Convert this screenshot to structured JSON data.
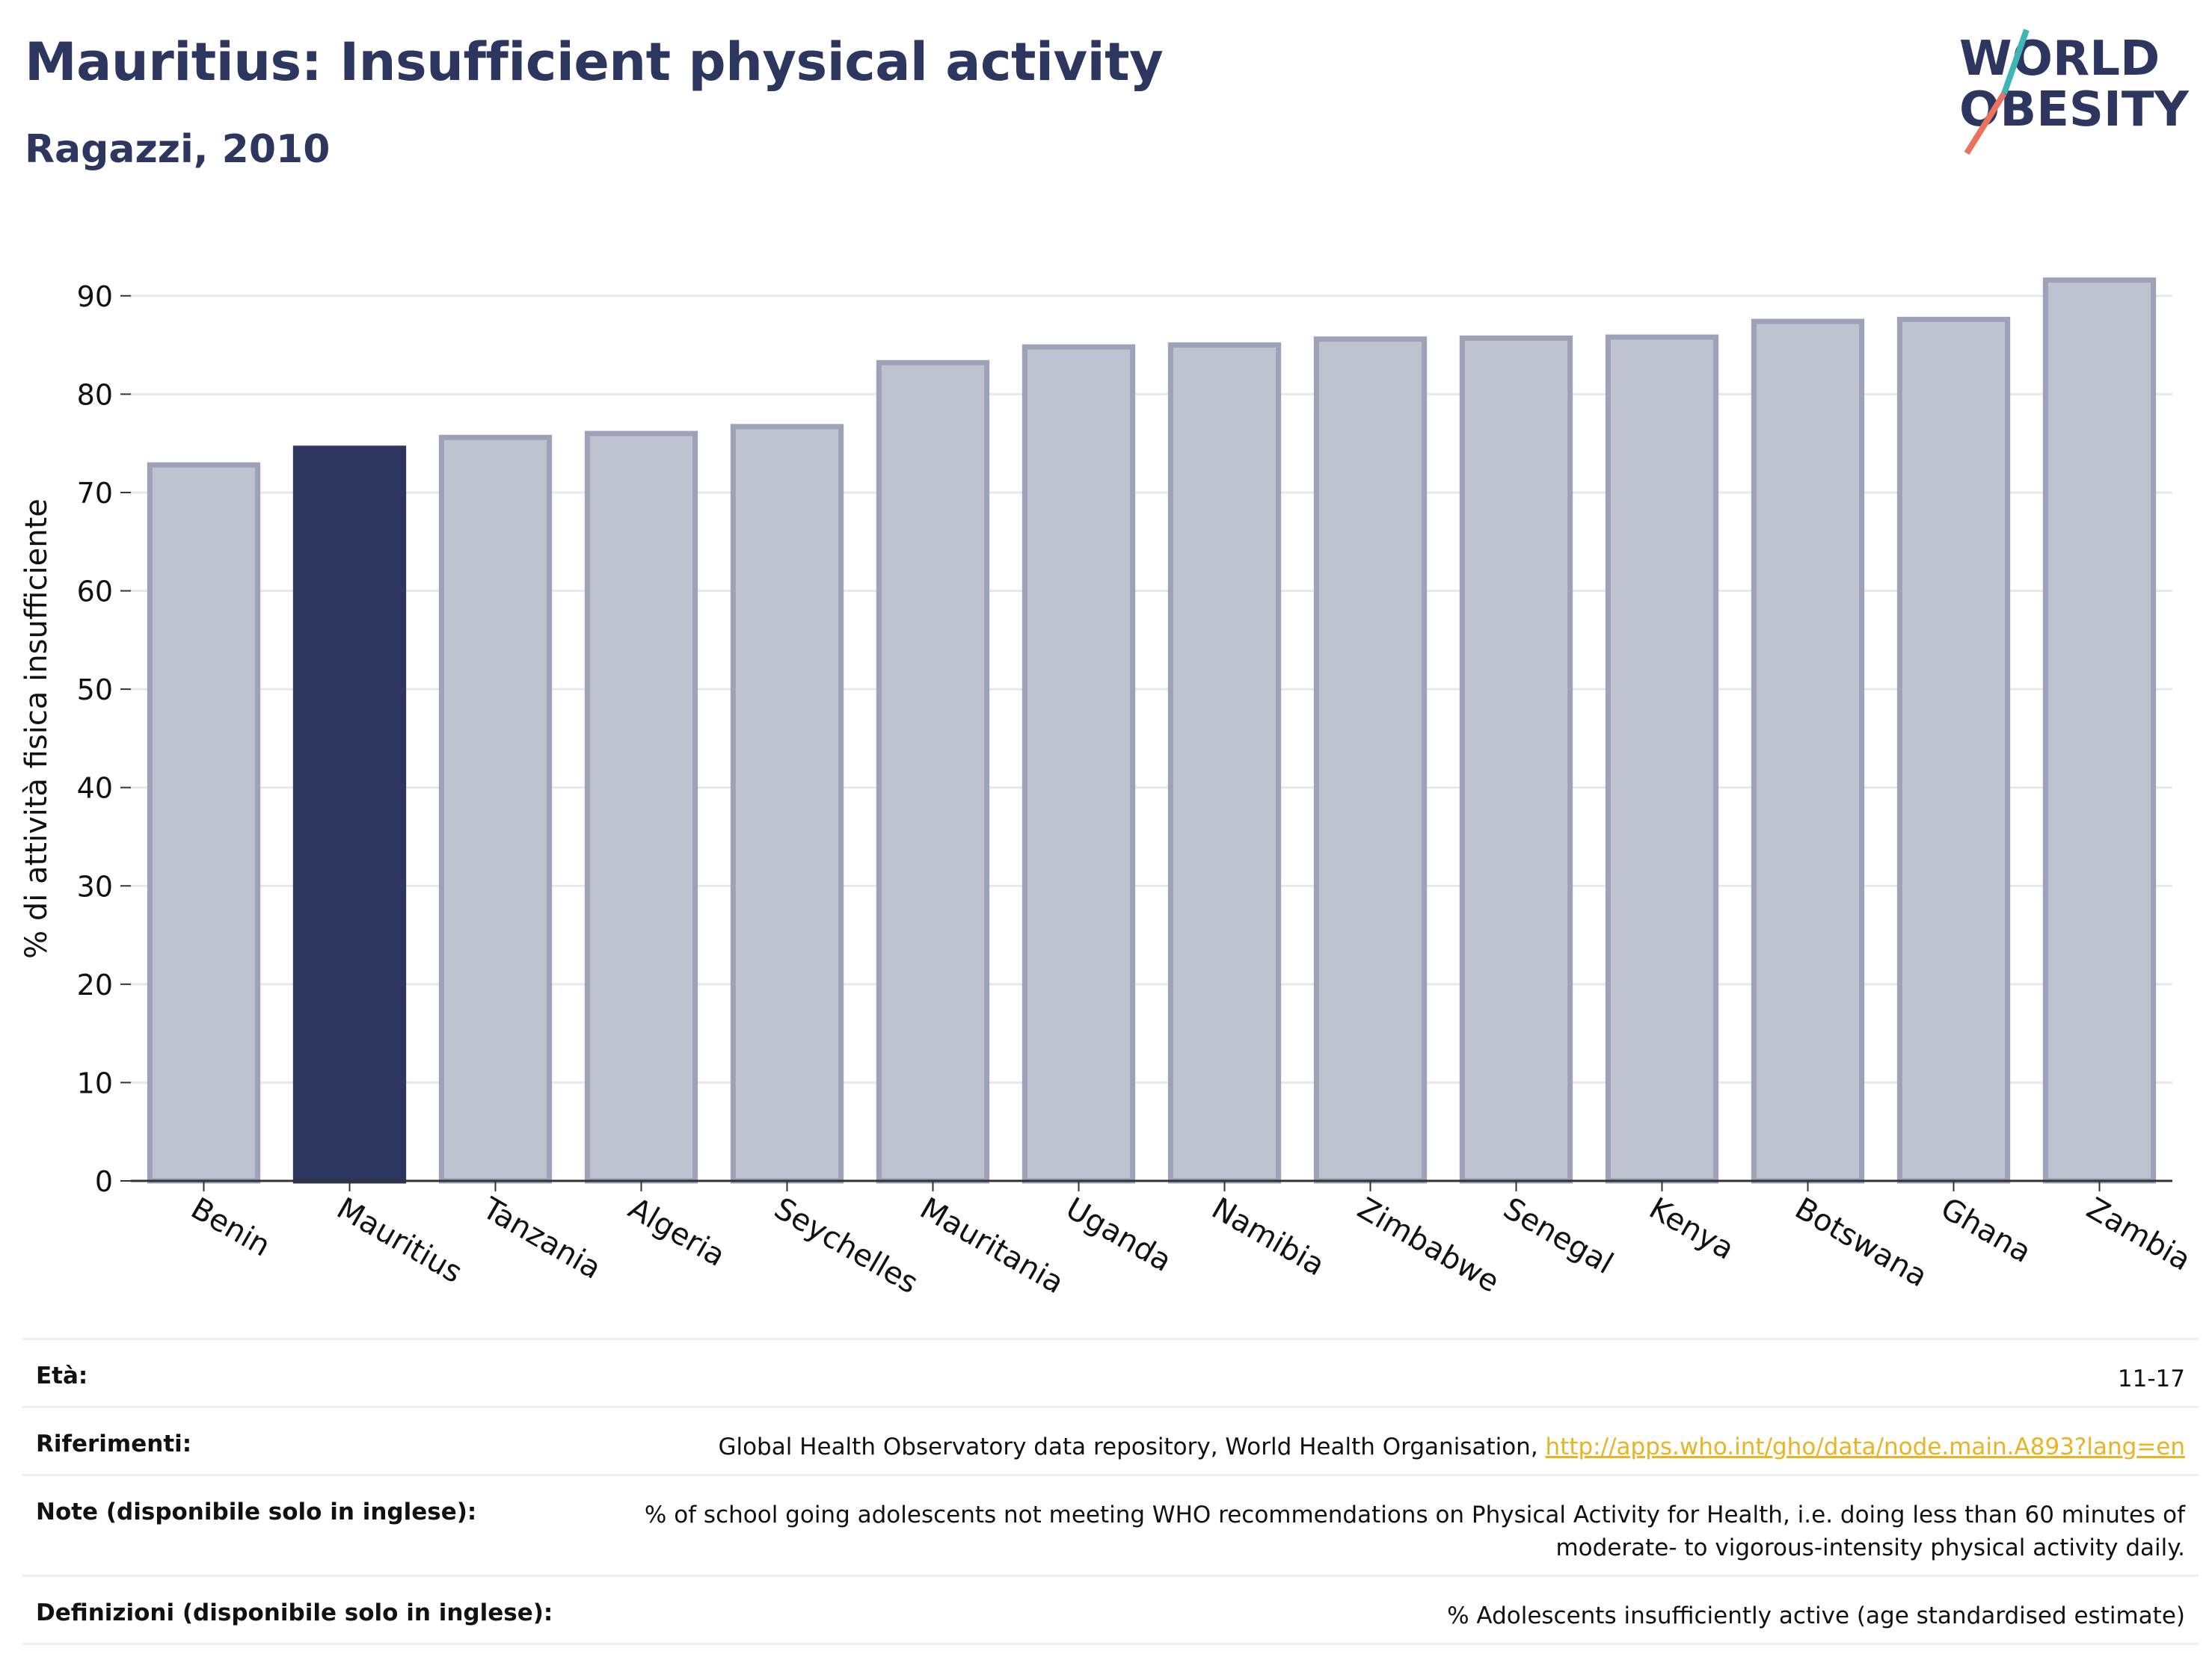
{
  "header": {
    "title": "Mauritius: Insufficient physical activity",
    "subtitle": "Ragazzi, 2010"
  },
  "logo": {
    "line1": "WORLD",
    "line2": "OBESITY"
  },
  "colors": {
    "highlight": "#2c365e",
    "bar_fill": "#bfc3d0",
    "bar_stroke": "#9da2b8",
    "title": "#2c365e",
    "link": "#e8b423"
  },
  "chart_data": {
    "type": "bar",
    "categories": [
      "Benin",
      "Mauritius",
      "Tanzania",
      "Algeria",
      "Seychelles",
      "Mauritania",
      "Uganda",
      "Namibia",
      "Zimbabwe",
      "Senegal",
      "Kenya",
      "Botswana",
      "Ghana",
      "Zambia"
    ],
    "values": [
      72.8,
      74.5,
      75.6,
      76.0,
      76.7,
      83.2,
      84.8,
      85.0,
      85.6,
      85.7,
      85.8,
      87.4,
      87.6,
      91.6
    ],
    "highlight": "Mauritius",
    "ylabel": "% di attività fisica insufficiente",
    "ylim": [
      0,
      95
    ],
    "yticks": [
      0,
      10,
      20,
      30,
      40,
      50,
      60,
      70,
      80,
      90
    ],
    "grid": true,
    "legend": "none"
  },
  "footer": {
    "rows": [
      {
        "label": "Età:",
        "value": "11-17"
      },
      {
        "label": "Riferimenti:",
        "value": "Global Health Observatory data repository, World Health Organisation, ",
        "link": "http://apps.who.int/gho/data/node.main.A893?lang=en"
      },
      {
        "label": "Note (disponibile solo in inglese):",
        "value": "% of school going adolescents not meeting WHO recommendations on Physical Activity for Health, i.e. doing less than 60 minutes of moderate- to vigorous-intensity physical activity daily."
      },
      {
        "label": "Definizioni (disponibile solo in inglese):",
        "value": "% Adolescents insufficiently active (age standardised estimate)"
      }
    ]
  }
}
